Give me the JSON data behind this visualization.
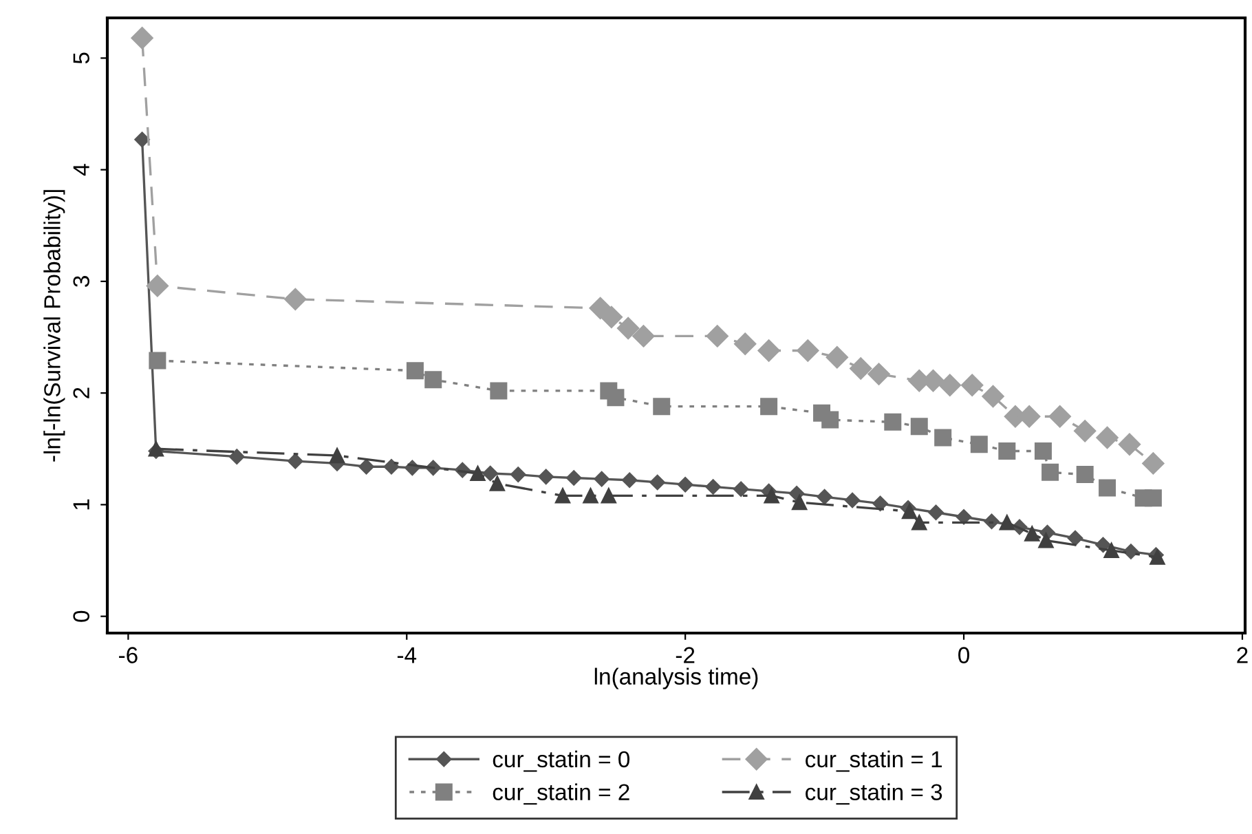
{
  "chart_data": {
    "type": "line",
    "xlabel": "ln(analysis time)",
    "ylabel": "-ln[-ln(Survival Probability)]",
    "xlim": [
      -6.15,
      2.02
    ],
    "xticks": [
      {
        "value": -6,
        "label": "-6"
      },
      {
        "value": -4,
        "label": "-4"
      },
      {
        "value": -2,
        "label": "-2"
      },
      0,
      2
    ],
    "ylim": [
      -0.15,
      5.36
    ],
    "yticks": [
      0,
      1,
      2,
      3,
      4,
      5
    ],
    "grid": false,
    "legend": "bottom",
    "series": [
      {
        "name": "cur_statin = 0",
        "color": "#555555",
        "marker": "diamond",
        "line_style": "solid",
        "x": [
          -5.9,
          -5.8,
          -5.22,
          -4.8,
          -4.5,
          -4.29,
          -4.11,
          -3.96,
          -3.81,
          -3.6,
          -3.4,
          -3.2,
          -3.0,
          -2.8,
          -2.6,
          -2.4,
          -2.2,
          -2.0,
          -1.8,
          -1.6,
          -1.4,
          -1.2,
          -1.0,
          -0.8,
          -0.6,
          -0.4,
          -0.2,
          0.0,
          0.2,
          0.4,
          0.6,
          0.8,
          1.0,
          1.2,
          1.38
        ],
        "values": [
          4.27,
          1.48,
          1.43,
          1.39,
          1.37,
          1.34,
          1.34,
          1.33,
          1.33,
          1.31,
          1.28,
          1.27,
          1.25,
          1.24,
          1.23,
          1.22,
          1.2,
          1.18,
          1.16,
          1.14,
          1.12,
          1.1,
          1.07,
          1.04,
          1.01,
          0.97,
          0.93,
          0.89,
          0.85,
          0.8,
          0.75,
          0.7,
          0.64,
          0.58,
          0.55
        ]
      },
      {
        "name": "cur_statin = 1",
        "color": "#a0a0a0",
        "marker": "diamond",
        "line_style": "dashed",
        "x": [
          -5.9,
          -5.79,
          -4.8,
          -2.61,
          -2.53,
          -2.41,
          -2.3,
          -1.77,
          -1.57,
          -1.4,
          -1.12,
          -0.91,
          -0.74,
          -0.61,
          -0.32,
          -0.22,
          -0.1,
          0.06,
          0.21,
          0.37,
          0.47,
          0.69,
          0.87,
          1.03,
          1.19,
          1.36
        ],
        "values": [
          5.18,
          2.96,
          2.84,
          2.76,
          2.68,
          2.58,
          2.51,
          2.51,
          2.44,
          2.38,
          2.38,
          2.32,
          2.22,
          2.17,
          2.11,
          2.11,
          2.07,
          2.07,
          1.97,
          1.79,
          1.79,
          1.79,
          1.66,
          1.6,
          1.54,
          1.37
        ]
      },
      {
        "name": "cur_statin = 2",
        "color": "#808080",
        "marker": "square",
        "line_style": "dotted",
        "x": [
          -5.79,
          -3.94,
          -3.81,
          -3.34,
          -2.55,
          -2.5,
          -2.17,
          -1.4,
          -1.02,
          -0.96,
          -0.51,
          -0.32,
          -0.15,
          0.11,
          0.31,
          0.57,
          0.62,
          0.87,
          1.03,
          1.29,
          1.36
        ],
        "values": [
          2.29,
          2.2,
          2.12,
          2.02,
          2.02,
          1.96,
          1.88,
          1.88,
          1.82,
          1.76,
          1.74,
          1.7,
          1.6,
          1.54,
          1.48,
          1.48,
          1.29,
          1.27,
          1.15,
          1.06,
          1.06
        ]
      },
      {
        "name": "cur_statin = 3",
        "color": "#404040",
        "marker": "triangle",
        "line_style": "dashdot",
        "x": [
          -5.8,
          -4.5,
          -3.49,
          -3.35,
          -2.88,
          -2.68,
          -2.55,
          -1.38,
          -1.18,
          -0.39,
          -0.32,
          0.31,
          0.49,
          0.59,
          1.06,
          1.39
        ],
        "values": [
          1.5,
          1.44,
          1.28,
          1.19,
          1.08,
          1.08,
          1.08,
          1.08,
          1.02,
          0.94,
          0.84,
          0.84,
          0.74,
          0.68,
          0.59,
          0.53
        ]
      }
    ]
  }
}
